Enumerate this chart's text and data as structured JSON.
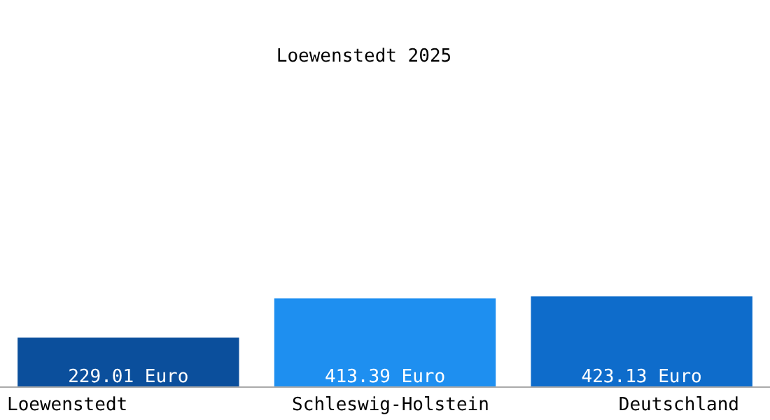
{
  "chart_data": {
    "type": "bar",
    "title": "Loewenstedt 2025",
    "categories": [
      "Loewenstedt",
      "Schleswig-Holstein",
      "Deutschland"
    ],
    "values": [
      229.01,
      413.39,
      423.13
    ],
    "colors": [
      "#0b4f9c",
      "#1e8ff0",
      "#0e6ccb"
    ],
    "value_labels": [
      "229.01 Euro",
      "413.39 Euro",
      "423.13 Euro"
    ]
  }
}
